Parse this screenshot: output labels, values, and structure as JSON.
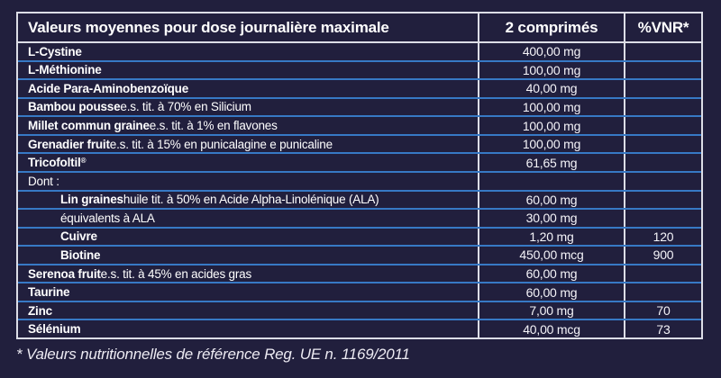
{
  "colors": {
    "background": "#211f3d",
    "row_divider_blue": "#3779c5",
    "border_white": "#dcdde6",
    "text": "#ffffff"
  },
  "table": {
    "header": {
      "col1": "Valeurs moyennes pour dose journalière maximale",
      "col2": "2 comprimés",
      "col3": "%VNR*"
    },
    "rows": [
      {
        "name": "L-Cystine",
        "sup": "",
        "desc": "",
        "qty": "400,00 mg",
        "vnr": "",
        "indent": false
      },
      {
        "name": "L-Méthionine",
        "sup": "",
        "desc": "",
        "qty": "100,00 mg",
        "vnr": "",
        "indent": false
      },
      {
        "name": "Acide Para-Aminobenzoïque",
        "sup": "",
        "desc": "",
        "qty": "40,00 mg",
        "vnr": "",
        "indent": false
      },
      {
        "name": "Bambou pousse",
        "sup": "",
        "desc": " e.s. tit. à 70% en Silicium",
        "qty": "100,00 mg",
        "vnr": "",
        "indent": false
      },
      {
        "name": "Millet commun graine",
        "sup": "",
        "desc": " e.s. tit. à 1% en flavones",
        "qty": "100,00 mg",
        "vnr": "",
        "indent": false
      },
      {
        "name": "Grenadier fruit",
        "sup": "",
        "desc": " e.s. tit. à 15% en punicalagine e punicaline",
        "qty": "100,00 mg",
        "vnr": "",
        "indent": false
      },
      {
        "name": "Tricofoltil",
        "sup": "®",
        "desc": "",
        "qty": "61,65 mg",
        "vnr": "",
        "indent": false
      },
      {
        "name": "",
        "sup": "",
        "desc": "Dont :",
        "qty": "",
        "vnr": "",
        "indent": false
      },
      {
        "name": "Lin graines",
        "sup": "",
        "desc": " huile tit. à 50% en Acide Alpha-Linolénique (ALA)",
        "qty": "60,00 mg",
        "vnr": "",
        "indent": true
      },
      {
        "name": "",
        "sup": "",
        "desc": "équivalents à ALA",
        "qty": "30,00 mg",
        "vnr": "",
        "indent": true
      },
      {
        "name": "Cuivre",
        "sup": "",
        "desc": "",
        "qty": "1,20 mg",
        "vnr": "120",
        "indent": true
      },
      {
        "name": "Biotine",
        "sup": "",
        "desc": "",
        "qty": "450,00 mcg",
        "vnr": "900",
        "indent": true
      },
      {
        "name": "Serenoa fruit",
        "sup": "",
        "desc": " e.s. tit. à 45% en acides gras",
        "qty": "60,00 mg",
        "vnr": "",
        "indent": false
      },
      {
        "name": "Taurine",
        "sup": "",
        "desc": "",
        "qty": "60,00 mg",
        "vnr": "",
        "indent": false
      },
      {
        "name": "Zinc",
        "sup": "",
        "desc": "",
        "qty": "7,00 mg",
        "vnr": "70",
        "indent": false
      },
      {
        "name": "Sélénium",
        "sup": "",
        "desc": "",
        "qty": "40,00 mcg",
        "vnr": "73",
        "indent": false
      }
    ]
  },
  "footnote": "* Valeurs nutritionnelles de référence Reg. UE n. 1169/2011"
}
